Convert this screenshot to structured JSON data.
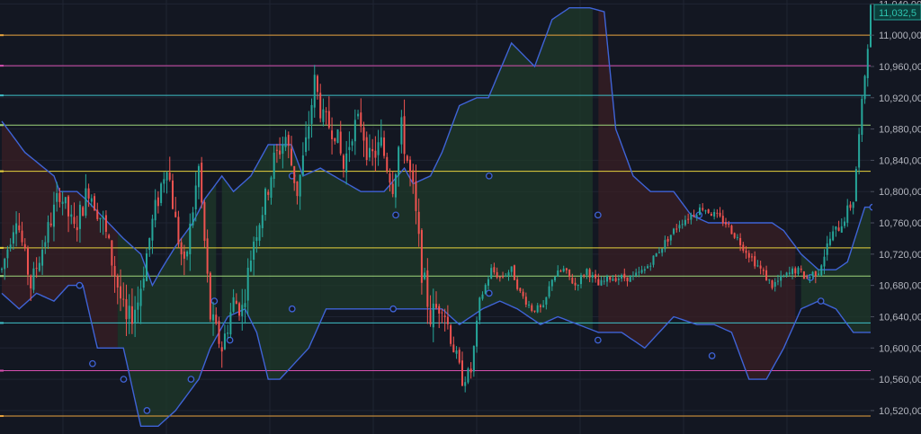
{
  "colors": {
    "background": "#131722",
    "grid": "#1f2433",
    "axis_text": "#b2b5be",
    "up": "#26a69a",
    "down": "#ef5350",
    "channel": "#3f63d6",
    "cloud_bull": "#1f3a2a",
    "cloud_bear": "#3a1f24",
    "last_price_bg": "#0b3f3c",
    "last_price_text": "#2ec4b0"
  },
  "chart_data": {
    "type": "candlestick",
    "ylim": [
      10490,
      11045
    ],
    "y_ticks": [
      {
        "value": 11040,
        "label": "11,040,00"
      },
      {
        "value": 11000,
        "label": "11,000,00"
      },
      {
        "value": 10960,
        "label": "10,960,00"
      },
      {
        "value": 10920,
        "label": "10,920,00"
      },
      {
        "value": 10880,
        "label": "10,880,00"
      },
      {
        "value": 10840,
        "label": "10,840,00"
      },
      {
        "value": 10800,
        "label": "10,800,00"
      },
      {
        "value": 10760,
        "label": "10,760,00"
      },
      {
        "value": 10720,
        "label": "10,720,00"
      },
      {
        "value": 10680,
        "label": "10,680,00"
      },
      {
        "value": 10640,
        "label": "10,640,00"
      },
      {
        "value": 10600,
        "label": "10,600,00"
      },
      {
        "value": 10560,
        "label": "10,560,00"
      },
      {
        "value": 10520,
        "label": "10,520,00"
      }
    ],
    "last_price": {
      "value": 11032.5,
      "label": "11,032,5"
    },
    "levels": [
      {
        "value": 11000,
        "color": "#e8a33d"
      },
      {
        "value": 10961,
        "color": "#d64fb0"
      },
      {
        "value": 10923,
        "color": "#3fc1c9"
      },
      {
        "value": 10885,
        "color": "#9ed67a"
      },
      {
        "value": 10826,
        "color": "#e8d33d"
      },
      {
        "value": 10728,
        "color": "#e8d33d"
      },
      {
        "value": 10692,
        "color": "#9ed67a"
      },
      {
        "value": 10632,
        "color": "#3fc1c9"
      },
      {
        "value": 10571,
        "color": "#d64fb0"
      },
      {
        "value": 10513,
        "color": "#e8a33d"
      }
    ],
    "anchors": [
      [
        0,
        10700
      ],
      [
        5,
        10770
      ],
      [
        10,
        10680
      ],
      [
        15,
        10740
      ],
      [
        20,
        10800
      ],
      [
        25,
        10750
      ],
      [
        30,
        10805
      ],
      [
        35,
        10760
      ],
      [
        40,
        10680
      ],
      [
        43,
        10630
      ],
      [
        47,
        10660
      ],
      [
        52,
        10760
      ],
      [
        57,
        10840
      ],
      [
        60,
        10760
      ],
      [
        63,
        10700
      ],
      [
        68,
        10830
      ],
      [
        72,
        10640
      ],
      [
        76,
        10600
      ],
      [
        80,
        10660
      ],
      [
        83,
        10650
      ],
      [
        87,
        10740
      ],
      [
        91,
        10790
      ],
      [
        94,
        10840
      ],
      [
        98,
        10870
      ],
      [
        102,
        10800
      ],
      [
        105,
        10860
      ],
      [
        108,
        10940
      ],
      [
        111,
        10890
      ],
      [
        115,
        10880
      ],
      [
        118,
        10830
      ],
      [
        121,
        10880
      ],
      [
        124,
        10890
      ],
      [
        127,
        10840
      ],
      [
        131,
        10860
      ],
      [
        135,
        10810
      ],
      [
        138,
        10880
      ],
      [
        142,
        10800
      ],
      [
        145,
        10700
      ],
      [
        148,
        10640
      ],
      [
        152,
        10660
      ],
      [
        156,
        10600
      ],
      [
        159,
        10560
      ],
      [
        162,
        10570
      ],
      [
        165,
        10660
      ],
      [
        169,
        10700
      ],
      [
        172,
        10690
      ],
      [
        176,
        10700
      ],
      [
        179,
        10670
      ],
      [
        183,
        10650
      ],
      [
        187,
        10650
      ],
      [
        190,
        10690
      ],
      [
        194,
        10700
      ],
      [
        198,
        10680
      ],
      [
        202,
        10700
      ],
      [
        206,
        10680
      ],
      [
        210,
        10690
      ],
      [
        214,
        10690
      ],
      [
        218,
        10690
      ],
      [
        222,
        10700
      ],
      [
        226,
        10720
      ],
      [
        230,
        10740
      ],
      [
        234,
        10760
      ],
      [
        238,
        10770
      ],
      [
        242,
        10780
      ],
      [
        246,
        10770
      ],
      [
        250,
        10760
      ],
      [
        254,
        10740
      ],
      [
        258,
        10720
      ],
      [
        262,
        10700
      ],
      [
        266,
        10680
      ],
      [
        270,
        10690
      ],
      [
        274,
        10700
      ],
      [
        278,
        10690
      ],
      [
        282,
        10700
      ],
      [
        286,
        10740
      ],
      [
        290,
        10760
      ],
      [
        294,
        10790
      ],
      [
        297,
        10910
      ],
      [
        300,
        11032.5
      ]
    ],
    "volatility": [
      [
        0,
        22
      ],
      [
        40,
        34
      ],
      [
        80,
        30
      ],
      [
        150,
        34
      ],
      [
        165,
        10
      ],
      [
        230,
        10
      ],
      [
        270,
        12
      ],
      [
        290,
        16
      ],
      [
        300,
        20
      ]
    ],
    "channel_top": [
      [
        0,
        10890
      ],
      [
        8,
        10850
      ],
      [
        18,
        10820
      ],
      [
        20,
        10800
      ],
      [
        26,
        10800
      ],
      [
        29,
        10790
      ],
      [
        42,
        10740
      ],
      [
        48,
        10720
      ],
      [
        52,
        10680
      ],
      [
        55,
        10700
      ],
      [
        60,
        10730
      ],
      [
        66,
        10760
      ],
      [
        70,
        10790
      ],
      [
        76,
        10820
      ],
      [
        80,
        10800
      ],
      [
        86,
        10820
      ],
      [
        92,
        10860
      ],
      [
        100,
        10860
      ],
      [
        104,
        10820
      ],
      [
        110,
        10830
      ],
      [
        124,
        10800
      ],
      [
        132,
        10800
      ],
      [
        139,
        10830
      ],
      [
        142,
        10810
      ],
      [
        148,
        10820
      ],
      [
        152,
        10850
      ],
      [
        158,
        10910
      ],
      [
        164,
        10920
      ],
      [
        168,
        10920
      ],
      [
        176,
        10990
      ],
      [
        184,
        10960
      ],
      [
        190,
        11020
      ],
      [
        196,
        11035
      ],
      [
        203,
        11035
      ],
      [
        208,
        11030
      ],
      [
        212,
        10880
      ],
      [
        218,
        10820
      ],
      [
        224,
        10800
      ],
      [
        232,
        10800
      ],
      [
        238,
        10770
      ],
      [
        244,
        10760
      ],
      [
        250,
        10760
      ],
      [
        256,
        10760
      ],
      [
        262,
        10760
      ],
      [
        266,
        10760
      ],
      [
        270,
        10750
      ],
      [
        276,
        10720
      ],
      [
        282,
        10700
      ],
      [
        288,
        10700
      ],
      [
        292,
        10710
      ],
      [
        298,
        10780
      ],
      [
        300,
        10780
      ]
    ],
    "channel_bottom": [
      [
        0,
        10670
      ],
      [
        6,
        10650
      ],
      [
        12,
        10670
      ],
      [
        18,
        10660
      ],
      [
        23,
        10680
      ],
      [
        28,
        10680
      ],
      [
        33,
        10600
      ],
      [
        38,
        10600
      ],
      [
        42,
        10600
      ],
      [
        48,
        10500
      ],
      [
        54,
        10500
      ],
      [
        60,
        10520
      ],
      [
        68,
        10560
      ],
      [
        72,
        10600
      ],
      [
        78,
        10640
      ],
      [
        84,
        10650
      ],
      [
        88,
        10620
      ],
      [
        92,
        10560
      ],
      [
        96,
        10560
      ],
      [
        106,
        10600
      ],
      [
        112,
        10650
      ],
      [
        122,
        10650
      ],
      [
        132,
        10650
      ],
      [
        144,
        10650
      ],
      [
        152,
        10650
      ],
      [
        158,
        10630
      ],
      [
        166,
        10650
      ],
      [
        172,
        10660
      ],
      [
        178,
        10650
      ],
      [
        186,
        10630
      ],
      [
        192,
        10640
      ],
      [
        206,
        10620
      ],
      [
        214,
        10620
      ],
      [
        222,
        10600
      ],
      [
        232,
        10640
      ],
      [
        240,
        10630
      ],
      [
        246,
        10630
      ],
      [
        252,
        10620
      ],
      [
        258,
        10560
      ],
      [
        264,
        10560
      ],
      [
        270,
        10600
      ],
      [
        276,
        10650
      ],
      [
        282,
        10660
      ],
      [
        288,
        10650
      ],
      [
        294,
        10620
      ],
      [
        300,
        10620
      ]
    ],
    "channel_circles": [
      [
        30,
        10680
      ],
      [
        35,
        10580
      ],
      [
        47,
        10560
      ],
      [
        56,
        10520
      ],
      [
        73,
        10560
      ],
      [
        82,
        10660
      ],
      [
        88,
        10610
      ],
      [
        112,
        10820
      ],
      [
        112,
        10650
      ],
      [
        151,
        10650
      ],
      [
        152,
        10770
      ],
      [
        188,
        10820
      ],
      [
        188,
        10670
      ],
      [
        230,
        10770
      ],
      [
        230,
        10610
      ],
      [
        269,
        10770
      ],
      [
        274,
        10590
      ],
      [
        312,
        10690
      ],
      [
        316,
        10660
      ],
      [
        336,
        10780
      ]
    ]
  }
}
